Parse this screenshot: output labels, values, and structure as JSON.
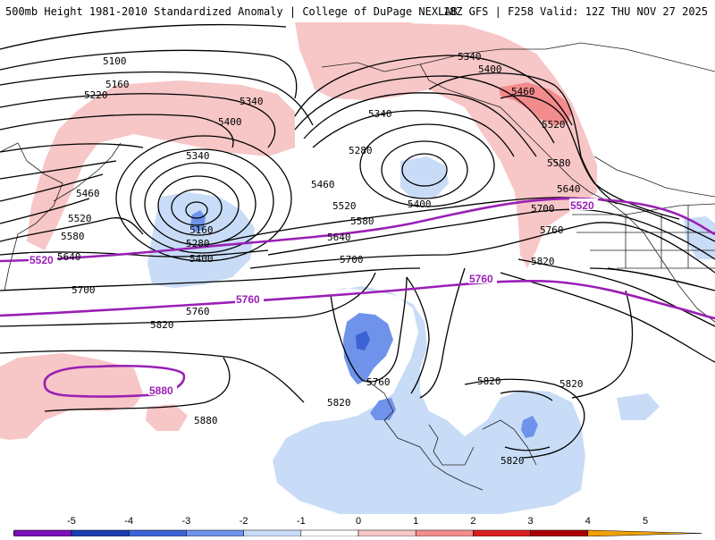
{
  "header": {
    "title_left": "500mb Height 1981-2010 Standardized Anomaly | College of DuPage NEXLAB",
    "title_right": "18Z GFS | F258 Valid: 12Z THU NOV 27 2025"
  },
  "map": {
    "contour_labels": [
      "5100",
      "5160",
      "5220",
      "5340",
      "5400",
      "5340",
      "5460",
      "5520",
      "5580",
      "5640",
      "5700",
      "5760",
      "5820",
      "5880",
      "5340",
      "5280",
      "5400",
      "5460",
      "5520",
      "5580",
      "5640",
      "5700",
      "5160",
      "5280",
      "5400",
      "5340",
      "5400",
      "5460",
      "5520",
      "5580",
      "5640",
      "5700",
      "5760",
      "5820",
      "5820",
      "5820",
      "5820",
      "5820"
    ],
    "highlight_labels": [
      "5520",
      "5760",
      "5880",
      "5520",
      "5760"
    ]
  },
  "colorbar": {
    "ticks": [
      "-5",
      "-4",
      "-3",
      "-2",
      "-1",
      "0",
      "1",
      "2",
      "3",
      "4",
      "5"
    ],
    "colors": [
      "#c050c0",
      "#7a10b8",
      "#1a3db0",
      "#3c63d6",
      "#6f93ea",
      "#c8dcf7",
      "#ffffff",
      "#f7c6c6",
      "#f28c8c",
      "#d82020",
      "#a80000",
      "#f0a000"
    ]
  }
}
